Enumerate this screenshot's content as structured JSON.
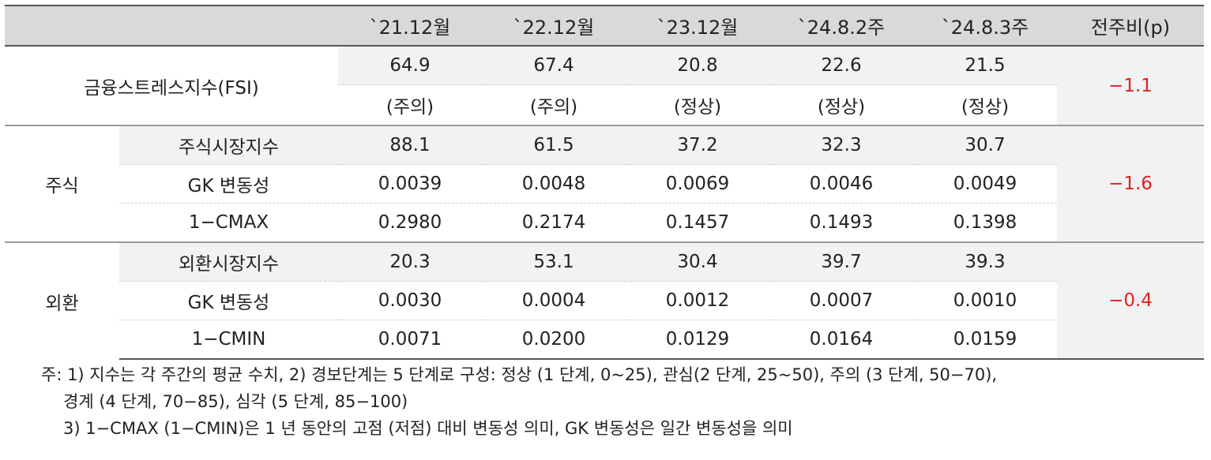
{
  "header": {
    "blank": "",
    "cols": [
      "`21.12월",
      "`22.12월",
      "`23.12월",
      "`24.8.2주",
      "`24.8.3주"
    ],
    "change": "전주비(p)"
  },
  "fsi": {
    "label": "금융스트레스지수(FSI)",
    "values": [
      "64.9",
      "67.4",
      "20.8",
      "22.6",
      "21.5"
    ],
    "status": [
      "(주의)",
      "(주의)",
      "(정상)",
      "(정상)",
      "(정상)"
    ],
    "change": "−1.1"
  },
  "stock": {
    "label": "주식",
    "rows": [
      {
        "name": "주식시장지수",
        "values": [
          "88.1",
          "61.5",
          "37.2",
          "32.3",
          "30.7"
        ]
      },
      {
        "name": "GK 변동성",
        "values": [
          "0.0039",
          "0.0048",
          "0.0069",
          "0.0046",
          "0.0049"
        ]
      },
      {
        "name": "1−CMAX",
        "values": [
          "0.2980",
          "0.2174",
          "0.1457",
          "0.1493",
          "0.1398"
        ]
      }
    ],
    "change": "−1.6"
  },
  "fx": {
    "label": "외환",
    "rows": [
      {
        "name": "외환시장지수",
        "values": [
          "20.3",
          "53.1",
          "30.4",
          "39.7",
          "39.3"
        ]
      },
      {
        "name": "GK 변동성",
        "values": [
          "0.0030",
          "0.0004",
          "0.0012",
          "0.0007",
          "0.0010"
        ]
      },
      {
        "name": "1−CMIN",
        "values": [
          "0.0071",
          "0.0200",
          "0.0129",
          "0.0164",
          "0.0159"
        ]
      }
    ],
    "change": "−0.4"
  },
  "notes": {
    "line1": "주: 1) 지수는 각 주간의 평균 수치, 2) 경보단계는 5 단계로 구성: 정상 (1 단계, 0~25), 관심(2 단계, 25~50), 주의 (3 단계, 50−70),",
    "line2": "경계 (4 단계, 70−85), 심각 (5 단계, 85−100)",
    "line3": "3) 1−CMAX (1−CMIN)은 1 년 동안의 고점 (저점) 대비 변동성 의미, GK 변동성은 일간 변동성을 의미"
  }
}
